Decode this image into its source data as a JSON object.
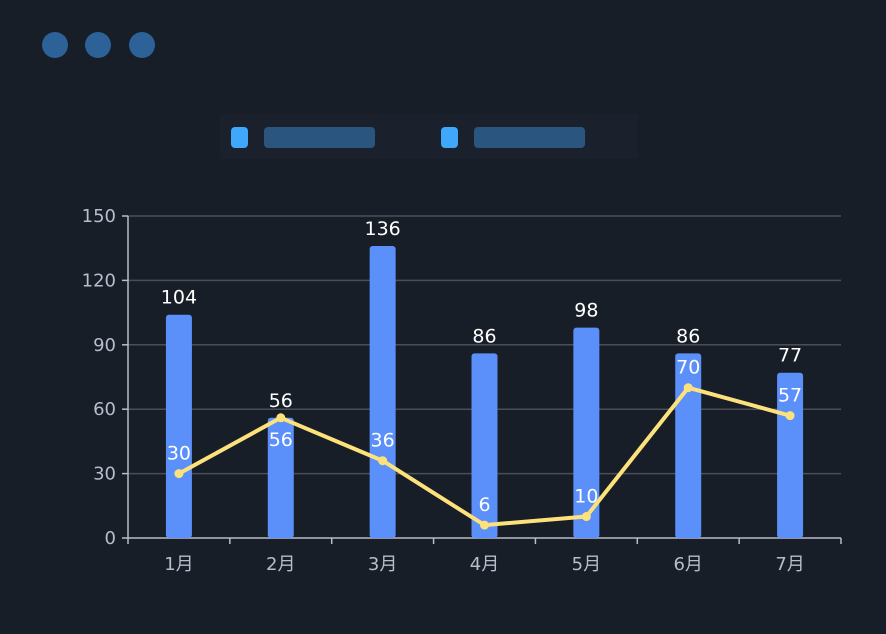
{
  "window_controls": {
    "dots": 3,
    "color": "#2c6298"
  },
  "legend": {
    "placement": "top-center",
    "items": [
      {
        "color": "#40a8fb"
      },
      {
        "color": "#40a8fb"
      }
    ]
  },
  "chart_data": {
    "type": "bar+line",
    "categories": [
      "1月",
      "2月",
      "3月",
      "4月",
      "5月",
      "6月",
      "7月"
    ],
    "series": [
      {
        "type": "bar",
        "values": [
          104,
          56,
          136,
          86,
          98,
          86,
          77
        ],
        "color": "#5b8ff9"
      },
      {
        "type": "line",
        "values": [
          30,
          56,
          36,
          6,
          10,
          70,
          57
        ],
        "color": "#fde27c"
      }
    ],
    "ylim": [
      0,
      150
    ],
    "yticks": [
      0,
      30,
      60,
      90,
      120,
      150
    ],
    "grid": true,
    "data_labels": true
  }
}
